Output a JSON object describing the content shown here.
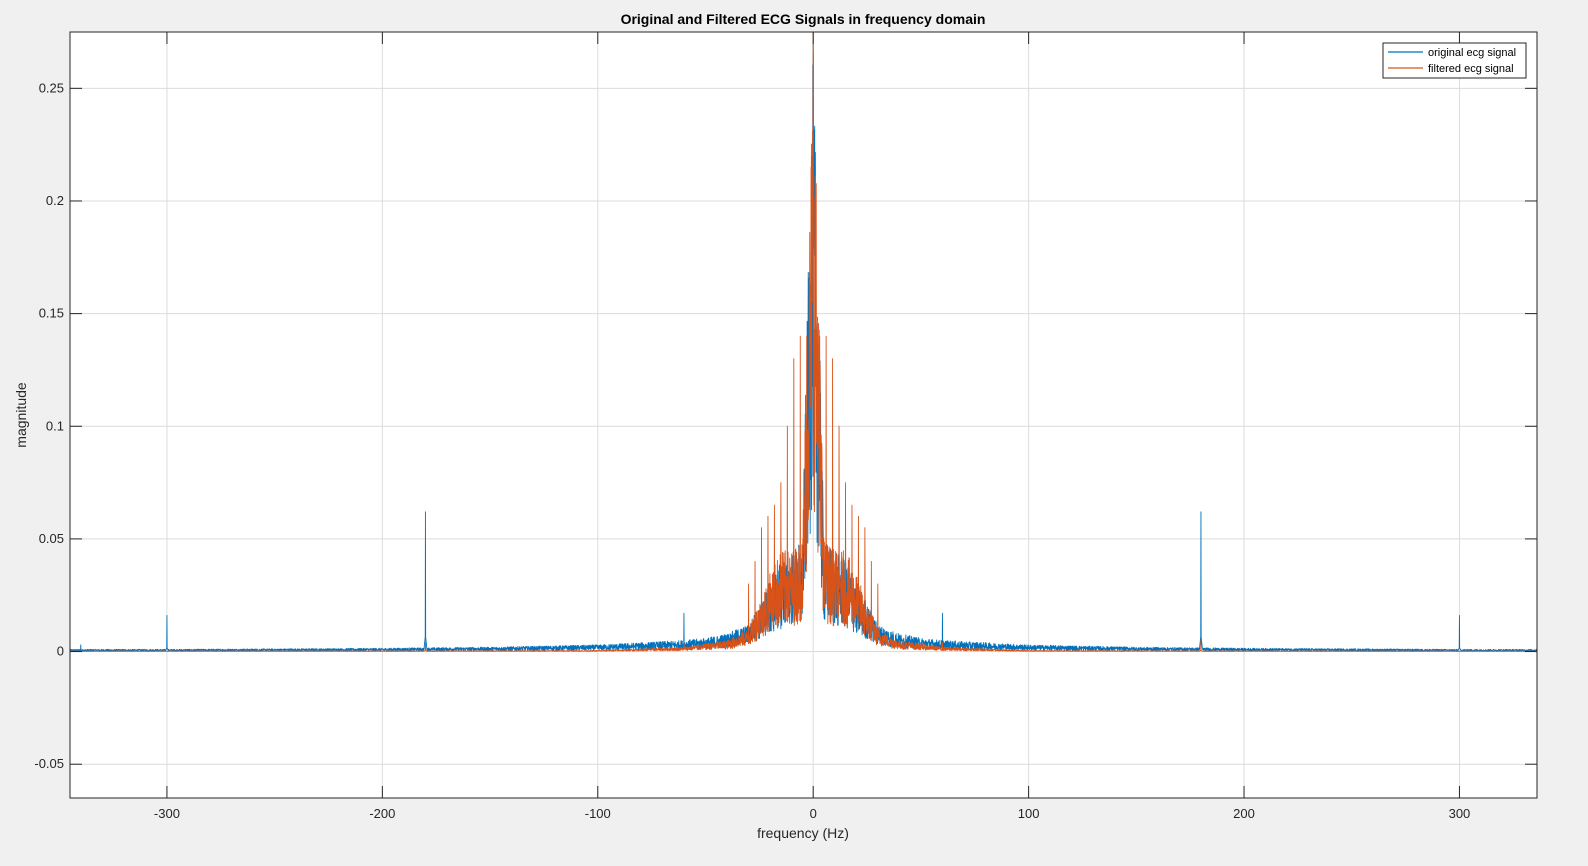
{
  "chart_data": {
    "type": "line",
    "title": "Original and Filtered ECG Signals in frequency domain",
    "xlabel": "frequency (Hz)",
    "ylabel": "magnitude",
    "xlim": [
      -345,
      336
    ],
    "ylim": [
      -0.065,
      0.275
    ],
    "xticks": [
      -300,
      -200,
      -100,
      0,
      100,
      200,
      300
    ],
    "yticks": [
      -0.05,
      0,
      0.05,
      0.1,
      0.15,
      0.2,
      0.25
    ],
    "xtick_labels": [
      "-300",
      "-200",
      "-100",
      "0",
      "100",
      "200",
      "300"
    ],
    "ytick_labels": [
      "-0.05",
      "0",
      "0.05",
      "0.1",
      "0.15",
      "0.2",
      "0.25"
    ],
    "grid": true,
    "legend_position": "top-right",
    "series": [
      {
        "name": "original ecg signal",
        "color": "#0072bd",
        "envelope": {
          "x": [
            -345,
            -300,
            -200,
            -150,
            -100,
            -80,
            -60,
            -50,
            -40,
            -30,
            -20,
            -15,
            -10,
            -5,
            0,
            5,
            10,
            15,
            20,
            30,
            40,
            50,
            60,
            80,
            100,
            150,
            200,
            300,
            336
          ],
          "y": [
            0.001,
            0.001,
            0.0015,
            0.002,
            0.003,
            0.004,
            0.005,
            0.006,
            0.008,
            0.012,
            0.03,
            0.04,
            0.045,
            0.05,
            0.27,
            0.05,
            0.045,
            0.04,
            0.03,
            0.012,
            0.008,
            0.006,
            0.005,
            0.004,
            0.003,
            0.002,
            0.0015,
            0.001,
            0.001
          ]
        },
        "spikes": [
          {
            "x": -340,
            "y": 0.003
          },
          {
            "x": -300,
            "y": 0.016
          },
          {
            "x": -180,
            "y": 0.062
          },
          {
            "x": -60,
            "y": 0.017
          },
          {
            "x": 60,
            "y": 0.017
          },
          {
            "x": 180,
            "y": 0.062
          },
          {
            "x": 300,
            "y": 0.016
          }
        ]
      },
      {
        "name": "filtered ecg signal",
        "color": "#d95319",
        "envelope": {
          "x": [
            -345,
            -180,
            -100,
            -60,
            -40,
            -30,
            -20,
            -15,
            -10,
            -5,
            0,
            5,
            10,
            15,
            20,
            30,
            40,
            60,
            100,
            180,
            336
          ],
          "y": [
            0.0002,
            0.0003,
            0.0005,
            0.002,
            0.005,
            0.01,
            0.035,
            0.045,
            0.045,
            0.05,
            0.275,
            0.05,
            0.045,
            0.045,
            0.035,
            0.01,
            0.005,
            0.002,
            0.0005,
            0.0003,
            0.0002
          ]
        },
        "harmonic_peaks": {
          "x": [
            -30,
            -27,
            -24,
            -21,
            -18,
            -15,
            -12,
            -9,
            -6,
            -3,
            3,
            6,
            9,
            12,
            15,
            18,
            21,
            24,
            27,
            30
          ],
          "y": [
            0.03,
            0.04,
            0.055,
            0.06,
            0.065,
            0.075,
            0.1,
            0.13,
            0.14,
            0.14,
            0.14,
            0.14,
            0.13,
            0.1,
            0.075,
            0.065,
            0.06,
            0.055,
            0.04,
            0.03
          ]
        },
        "spikes": [
          {
            "x": -180,
            "y": 0.005
          },
          {
            "x": -60,
            "y": 0.004
          },
          {
            "x": 60,
            "y": 0.004
          },
          {
            "x": 180,
            "y": 0.005
          }
        ]
      }
    ]
  }
}
